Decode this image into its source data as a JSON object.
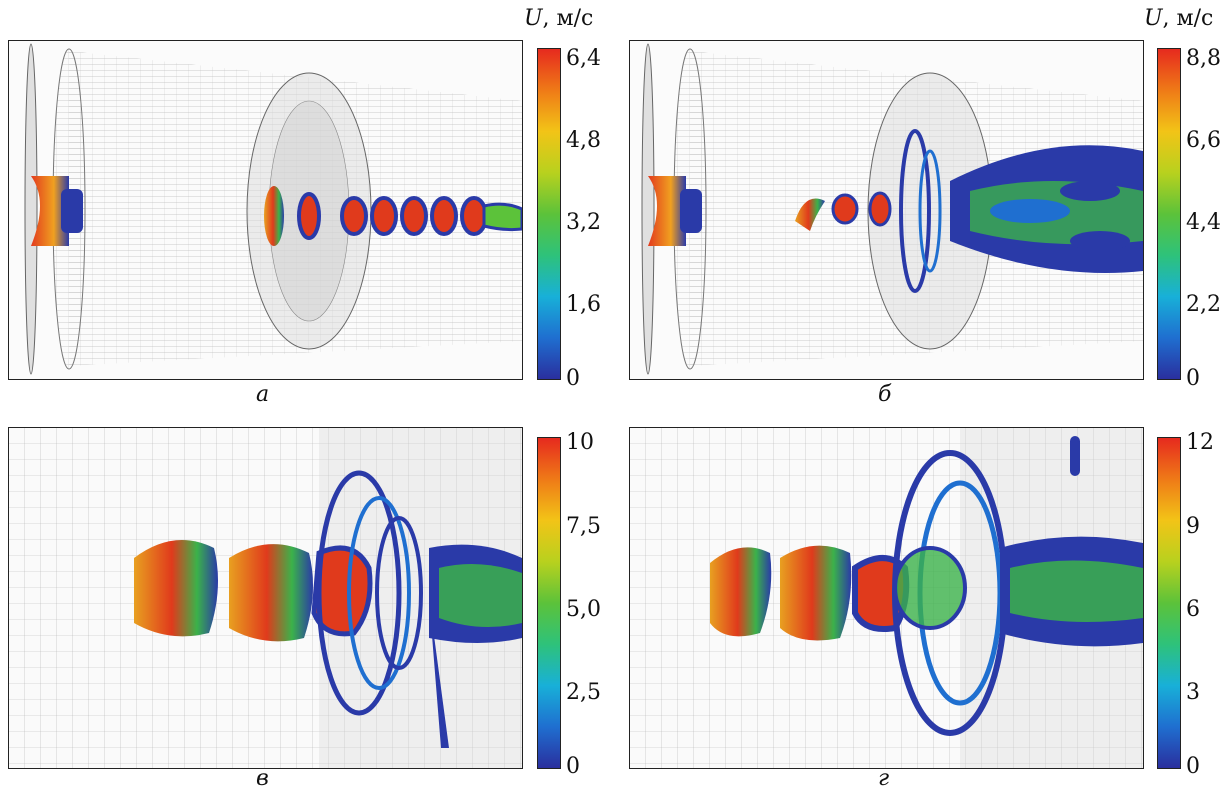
{
  "colorbar_gradient": [
    "#2a2f9e",
    "#1f6fd0",
    "#18b0d8",
    "#2ec27a",
    "#5cc23a",
    "#b8d11e",
    "#f2c417",
    "#ef7a17",
    "#e62a1e"
  ],
  "panels": [
    {
      "caption": "а",
      "unit_symbol": "U",
      "unit_text": ", м/с",
      "ticks": [
        "6,4",
        "4,8",
        "3,2",
        "1,6",
        "0"
      ],
      "max": 6.4
    },
    {
      "caption": "б",
      "unit_symbol": "U",
      "unit_text": ", м/с",
      "ticks": [
        "8,8",
        "6,6",
        "4,4",
        "2,2",
        "0"
      ],
      "max": 8.8
    },
    {
      "caption": "в",
      "unit_symbol": "",
      "unit_text": "",
      "ticks": [
        "10",
        "7,5",
        "5,0",
        "2,5",
        "0"
      ],
      "max": 10
    },
    {
      "caption": "г",
      "unit_symbol": "",
      "unit_text": "",
      "ticks": [
        "12",
        "9",
        "6",
        "3",
        "0"
      ],
      "max": 12
    }
  ]
}
